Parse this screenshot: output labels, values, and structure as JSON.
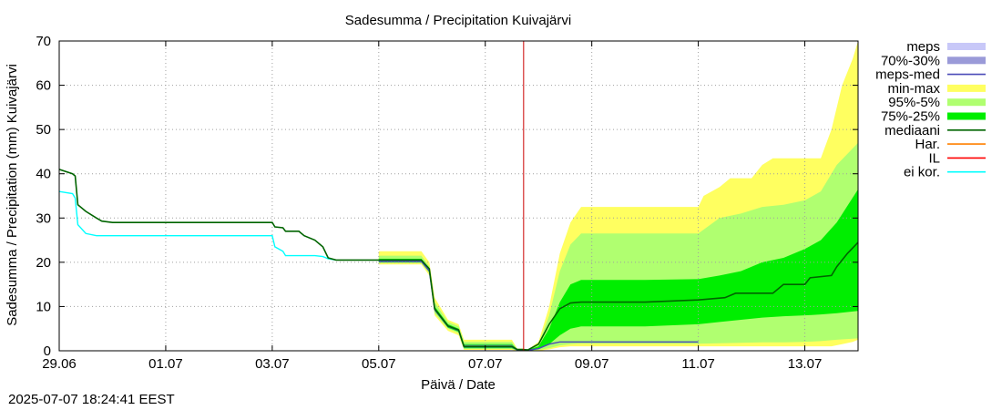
{
  "chart_data": {
    "type": "area",
    "title": "Sadesumma / Precipitation  Kuivajärvi",
    "xlabel": "Päivä / Date",
    "ylabel": "Sadesumma / Precipitation (mm)  Kuivajärvi",
    "ylim": [
      0,
      70
    ],
    "xlim_days": [
      0,
      15
    ],
    "x_ticks": [
      {
        "day": 0,
        "label": "29.06"
      },
      {
        "day": 2,
        "label": "01.07"
      },
      {
        "day": 4,
        "label": "03.07"
      },
      {
        "day": 6,
        "label": "05.07"
      },
      {
        "day": 8,
        "label": "07.07"
      },
      {
        "day": 10,
        "label": "09.07"
      },
      {
        "day": 12,
        "label": "11.07"
      },
      {
        "day": 14,
        "label": "13.07"
      }
    ],
    "y_ticks": [
      0,
      10,
      20,
      30,
      40,
      50,
      60,
      70
    ],
    "grid": true,
    "legend_position": "right",
    "now_day": 8.72,
    "legend": [
      {
        "label": "meps",
        "color": "#c8c8f8",
        "kind": "band"
      },
      {
        "label": "70%-30%",
        "color": "#9a9ad8",
        "kind": "band"
      },
      {
        "label": "meps-med",
        "color": "#4a4ab8",
        "kind": "line"
      },
      {
        "label": "min-max",
        "color": "#ffff60",
        "kind": "band"
      },
      {
        "label": "95%-5%",
        "color": "#b0ff70",
        "kind": "band"
      },
      {
        "label": "75%-25%",
        "color": "#00ee00",
        "kind": "band"
      },
      {
        "label": "mediaani",
        "color": "#006400",
        "kind": "line"
      },
      {
        "label": "Har.",
        "color": "#ff8000",
        "kind": "line"
      },
      {
        "label": "IL",
        "color": "#ff0000",
        "kind": "line"
      },
      {
        "label": "ei kor.",
        "color": "#00ffff",
        "kind": "line"
      }
    ],
    "series": [
      {
        "name": "min-max",
        "color": "#ffff60",
        "kind": "band",
        "x": [
          6.0,
          6.8,
          6.95,
          7.05,
          7.3,
          7.5,
          7.6,
          8.5,
          8.6,
          8.7,
          8.8,
          9.0,
          9.2,
          9.4,
          9.6,
          9.8,
          10.0,
          11.0,
          12.0,
          12.1,
          12.4,
          12.6,
          13.0,
          13.2,
          13.4,
          14.0,
          14.3,
          14.5,
          14.7,
          14.9,
          15.0
        ],
        "high": [
          22.5,
          22.5,
          20,
          12,
          7,
          6,
          2.5,
          2.5,
          0.5,
          0.5,
          0.3,
          2,
          10,
          22,
          29,
          32.5,
          32.5,
          32.5,
          32.5,
          35,
          37,
          39,
          39,
          42,
          43.5,
          43.5,
          43.5,
          50,
          60,
          66,
          70
        ],
        "low": [
          19.5,
          19.5,
          17,
          8,
          4.5,
          3.5,
          0.2,
          0.2,
          0,
          0,
          0,
          0,
          0.3,
          0.8,
          1,
          1,
          1,
          1,
          1,
          1,
          1,
          1,
          1,
          1,
          1,
          1,
          1,
          1,
          1.5,
          2,
          2.5
        ]
      },
      {
        "name": "95%-5%",
        "color": "#b0ff70",
        "kind": "band",
        "x": [
          6.0,
          6.8,
          6.95,
          7.05,
          7.3,
          7.5,
          7.6,
          8.5,
          8.6,
          8.7,
          8.8,
          9.0,
          9.2,
          9.4,
          9.6,
          9.8,
          10.0,
          11.0,
          12.0,
          12.4,
          12.8,
          13.2,
          13.6,
          14.0,
          14.3,
          14.6,
          15.0
        ],
        "high": [
          21.5,
          21.5,
          19,
          11,
          6.5,
          5.5,
          2,
          2,
          0.4,
          0.4,
          0.2,
          1.5,
          8,
          18,
          24,
          26.5,
          26.5,
          26.5,
          26.5,
          30,
          31,
          32.5,
          33,
          34,
          36,
          42,
          47
        ],
        "low": [
          19.8,
          19.8,
          17.5,
          8.5,
          5,
          4,
          0.4,
          0.4,
          0,
          0,
          0,
          0.2,
          0.6,
          1.2,
          1.5,
          1.6,
          1.6,
          1.6,
          1.6,
          1.7,
          1.8,
          1.9,
          1.9,
          2,
          2.2,
          2.5,
          2.8
        ]
      },
      {
        "name": "75%-25%",
        "color": "#00ee00",
        "kind": "band",
        "x": [
          6.0,
          6.8,
          6.95,
          7.05,
          7.3,
          7.5,
          7.6,
          8.5,
          8.6,
          8.7,
          8.8,
          9.0,
          9.2,
          9.4,
          9.6,
          9.8,
          10.0,
          11.0,
          12.0,
          12.4,
          12.8,
          13.2,
          13.6,
          14.0,
          14.3,
          14.6,
          15.0
        ],
        "high": [
          20.8,
          20.8,
          18.5,
          10,
          6,
          5,
          1.5,
          1.5,
          0.3,
          0.3,
          0.2,
          1,
          5,
          11,
          15,
          16,
          16,
          16,
          16.2,
          17,
          18,
          20,
          21,
          23,
          25,
          29,
          36.5
        ],
        "low": [
          20,
          20,
          17.8,
          9,
          5.2,
          4.3,
          0.6,
          0.6,
          0.1,
          0,
          0,
          0.4,
          1.5,
          3.5,
          5,
          5.5,
          5.5,
          5.5,
          6,
          6.5,
          7,
          7.5,
          7.8,
          8,
          8.2,
          8.5,
          9
        ]
      },
      {
        "name": "70%-30%",
        "color": "#9a9ad8",
        "kind": "band",
        "x": [
          6.0,
          6.8,
          6.95,
          7.05,
          7.3,
          7.5,
          7.6,
          8.5,
          8.6
        ],
        "high": [
          20.6,
          20.6,
          18.3,
          9.5,
          5.8,
          4.8,
          1.3,
          1.3,
          0.3
        ],
        "low": [
          20.2,
          20.2,
          18,
          9.2,
          5.4,
          4.5,
          0.8,
          0.8,
          0.2
        ]
      },
      {
        "name": "mediaani",
        "color": "#006400",
        "kind": "line",
        "x": [
          0,
          0.25,
          0.3,
          0.35,
          0.5,
          0.7,
          0.8,
          1.0,
          3.0,
          4.0,
          4.05,
          4.2,
          4.25,
          4.5,
          4.6,
          4.8,
          4.95,
          5.05,
          5.2,
          6.0,
          6.8,
          6.95,
          7.05,
          7.3,
          7.5,
          7.6,
          8.5,
          8.6,
          8.7,
          8.8,
          9.0,
          9.2,
          9.4,
          9.6,
          9.8,
          10.0,
          11.0,
          12.0,
          12.5,
          12.7,
          13.0,
          13.4,
          13.6,
          14.0,
          14.1,
          14.5,
          14.6,
          14.8,
          15.0
        ],
        "y": [
          41,
          40,
          39.5,
          33,
          31.5,
          30,
          29.3,
          29,
          29,
          29,
          28,
          27.8,
          27,
          27,
          26,
          25,
          23.5,
          21,
          20.5,
          20.5,
          20.5,
          18.5,
          9.5,
          5.6,
          4.7,
          1,
          1,
          0.3,
          0.3,
          0.2,
          1.5,
          6,
          9.5,
          10.8,
          11,
          11,
          11,
          11.5,
          12,
          13,
          13,
          13,
          15,
          15,
          16.5,
          17,
          19,
          22,
          24.5
        ]
      },
      {
        "name": "ei kor.",
        "color": "#00ffff",
        "kind": "line",
        "x": [
          0,
          0.25,
          0.3,
          0.35,
          0.5,
          0.7,
          1.0,
          4.0,
          4.05,
          4.2,
          4.25,
          4.5,
          4.8,
          4.95,
          5.05,
          5.2
        ],
        "y": [
          36,
          35.5,
          34.5,
          28.5,
          26.5,
          26,
          26,
          26,
          23.5,
          22.5,
          21.5,
          21.5,
          21.5,
          21.3,
          20.8,
          20.5
        ]
      },
      {
        "name": "meps-med",
        "color": "#4a4ab8",
        "kind": "line",
        "x": [
          6.0,
          6.8,
          6.95,
          7.05,
          7.3,
          7.5,
          7.6,
          8.5,
          8.6,
          8.7,
          8.8,
          9.0,
          9.2,
          9.4,
          12.0
        ],
        "y": [
          20.2,
          20.2,
          18,
          9.3,
          5.5,
          4.6,
          0.9,
          0.9,
          0.2,
          0.1,
          0.1,
          0.5,
          1.5,
          2,
          2
        ]
      }
    ]
  },
  "footer": {
    "timestamp": "2025-07-07 18:24:41 EEST"
  }
}
